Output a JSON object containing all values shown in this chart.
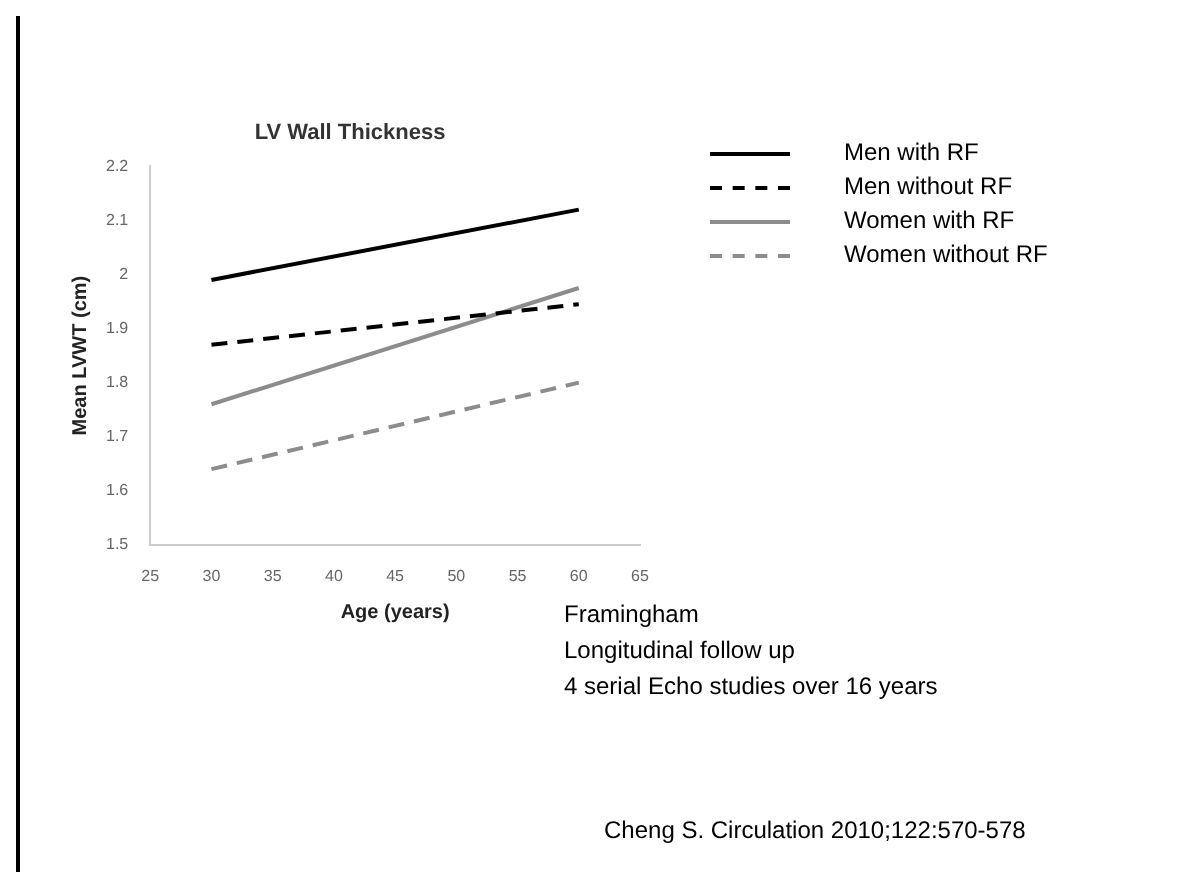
{
  "chart_data": {
    "type": "line",
    "title": "LV Wall Thickness",
    "xlabel": "Age (years)",
    "ylabel": "Mean LVWT (cm)",
    "x": [
      30,
      60
    ],
    "xlim": [
      25,
      65
    ],
    "xticks": [
      25,
      30,
      35,
      40,
      45,
      50,
      55,
      60,
      65
    ],
    "ylim": [
      1.5,
      2.2
    ],
    "yticks": [
      1.5,
      1.6,
      1.7,
      1.8,
      1.9,
      2,
      2.1,
      2.2
    ],
    "series": [
      {
        "name": "Men with RF",
        "color": "#000000",
        "values": [
          1.99,
          2.12
        ],
        "line_style": "solid"
      },
      {
        "name": "Men without RF",
        "color": "#000000",
        "values": [
          1.87,
          1.945
        ],
        "line_style": "dashed"
      },
      {
        "name": "Women with RF",
        "color": "#8c8c8c",
        "values": [
          1.76,
          1.975
        ],
        "line_style": "solid"
      },
      {
        "name": "Women without RF",
        "color": "#8c8c8c",
        "values": [
          1.64,
          1.8
        ],
        "line_style": "dashed"
      }
    ],
    "grid": false,
    "legend": "right",
    "marker": "none",
    "annotations": [
      "Framingham",
      "Longitudinal follow up",
      "4 serial Echo studies over 16 years",
      "Cheng S. Circulation 2010;122:570-578"
    ]
  }
}
